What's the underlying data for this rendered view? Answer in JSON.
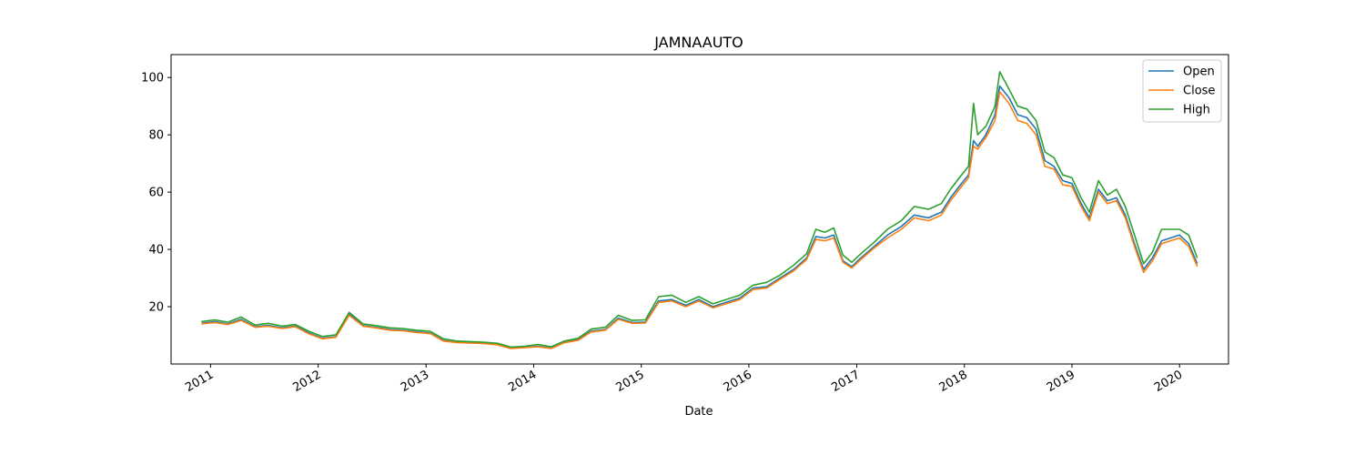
{
  "chart_data": {
    "type": "line",
    "title": "JAMNAAUTO",
    "xlabel": "Date",
    "ylabel": "",
    "xlim": [
      "2010-08-20",
      "2020-06-15"
    ],
    "ylim": [
      0,
      108
    ],
    "x_ticks": [
      "2011",
      "2012",
      "2013",
      "2014",
      "2015",
      "2016",
      "2017",
      "2018",
      "2019",
      "2020"
    ],
    "y_ticks": [
      20,
      40,
      60,
      80,
      100
    ],
    "grid": false,
    "legend_position": "top-right",
    "colors": {
      "Open": "#1f77b4",
      "Close": "#ff7f0e",
      "High": "#2ca02c"
    },
    "dates": [
      "2010-12-01",
      "2011-01-15",
      "2011-03-01",
      "2011-04-15",
      "2011-06-01",
      "2011-07-15",
      "2011-09-01",
      "2011-10-15",
      "2011-12-01",
      "2012-01-15",
      "2012-03-01",
      "2012-04-15",
      "2012-06-01",
      "2012-07-15",
      "2012-09-01",
      "2012-10-15",
      "2012-12-01",
      "2013-01-15",
      "2013-03-01",
      "2013-04-15",
      "2013-06-01",
      "2013-07-15",
      "2013-09-01",
      "2013-10-15",
      "2013-12-01",
      "2014-01-15",
      "2014-03-01",
      "2014-04-15",
      "2014-06-01",
      "2014-07-15",
      "2014-09-01",
      "2014-10-15",
      "2014-12-01",
      "2015-01-15",
      "2015-03-01",
      "2015-04-15",
      "2015-06-01",
      "2015-07-15",
      "2015-09-01",
      "2015-10-15",
      "2015-12-01",
      "2016-01-15",
      "2016-03-01",
      "2016-04-15",
      "2016-06-01",
      "2016-07-15",
      "2016-08-15",
      "2016-09-15",
      "2016-10-15",
      "2016-11-15",
      "2016-12-15",
      "2017-01-15",
      "2017-03-01",
      "2017-04-15",
      "2017-06-01",
      "2017-07-15",
      "2017-09-01",
      "2017-10-15",
      "2017-11-15",
      "2017-12-15",
      "2018-01-15",
      "2018-02-01",
      "2018-02-15",
      "2018-03-15",
      "2018-04-15",
      "2018-05-01",
      "2018-06-01",
      "2018-07-01",
      "2018-08-01",
      "2018-09-01",
      "2018-10-01",
      "2018-11-01",
      "2018-12-01",
      "2019-01-01",
      "2019-02-01",
      "2019-03-01",
      "2019-04-01",
      "2019-05-01",
      "2019-06-01",
      "2019-07-01",
      "2019-08-01",
      "2019-09-01",
      "2019-10-01",
      "2019-11-01",
      "2019-12-01",
      "2020-01-01",
      "2020-02-01",
      "2020-03-01"
    ],
    "series": [
      {
        "name": "Open",
        "values": [
          14.2,
          14.8,
          14.0,
          15.6,
          13.0,
          13.5,
          12.6,
          13.2,
          10.8,
          9.0,
          9.5,
          17.5,
          13.4,
          12.8,
          12.0,
          11.8,
          11.2,
          10.8,
          8.2,
          7.6,
          7.4,
          7.2,
          6.8,
          5.5,
          5.8,
          6.2,
          5.5,
          7.5,
          8.5,
          11.5,
          12.0,
          16.0,
          14.5,
          14.6,
          22.0,
          22.5,
          20.5,
          22.5,
          20.0,
          21.5,
          23.0,
          26.5,
          27.0,
          30.0,
          33.0,
          37.0,
          44.5,
          44.0,
          45.0,
          36.0,
          34.0,
          37.0,
          41.0,
          45.0,
          48.0,
          52.0,
          51.0,
          53.0,
          58.0,
          62.0,
          66.0,
          78.0,
          76.0,
          80.0,
          87.0,
          97.0,
          93.0,
          87.0,
          86.0,
          82.0,
          71.0,
          69.0,
          64.0,
          63.0,
          56.0,
          51.0,
          61.0,
          57.0,
          58.0,
          52.0,
          42.0,
          33.0,
          37.0,
          43.0,
          44.0,
          45.0,
          42.0,
          35.0
        ]
      },
      {
        "name": "Close",
        "values": [
          14.0,
          14.5,
          13.8,
          15.2,
          12.8,
          13.2,
          12.4,
          13.0,
          10.5,
          8.8,
          9.3,
          17.0,
          13.2,
          12.6,
          11.8,
          11.6,
          11.0,
          10.6,
          8.0,
          7.5,
          7.3,
          7.1,
          6.7,
          5.4,
          5.7,
          6.0,
          5.4,
          7.4,
          8.3,
          11.2,
          11.8,
          15.6,
          14.2,
          14.3,
          21.5,
          22.0,
          20.0,
          22.0,
          19.6,
          21.0,
          22.5,
          26.0,
          26.5,
          29.5,
          32.5,
          36.5,
          43.5,
          43.0,
          44.0,
          35.5,
          33.5,
          36.5,
          40.5,
          44.0,
          47.0,
          51.0,
          50.0,
          52.0,
          57.0,
          61.0,
          65.0,
          76.0,
          75.0,
          79.0,
          85.0,
          95.0,
          91.0,
          85.0,
          84.0,
          80.0,
          69.0,
          68.0,
          62.5,
          62.0,
          55.0,
          50.0,
          60.0,
          56.0,
          57.0,
          51.0,
          41.0,
          32.0,
          36.0,
          42.0,
          43.0,
          44.0,
          41.0,
          34.0
        ]
      },
      {
        "name": "High",
        "values": [
          14.8,
          15.4,
          14.6,
          16.4,
          13.6,
          14.2,
          13.2,
          13.8,
          11.4,
          9.6,
          10.2,
          18.0,
          14.0,
          13.4,
          12.6,
          12.4,
          11.8,
          11.4,
          8.8,
          8.0,
          7.8,
          7.6,
          7.2,
          5.9,
          6.2,
          6.8,
          6.0,
          8.0,
          9.0,
          12.2,
          12.8,
          17.0,
          15.2,
          15.4,
          23.5,
          24.0,
          21.5,
          23.5,
          21.0,
          22.5,
          24.0,
          27.5,
          28.5,
          31.0,
          34.5,
          38.5,
          47.0,
          46.0,
          47.5,
          38.0,
          35.5,
          38.5,
          42.5,
          47.0,
          50.0,
          55.0,
          54.0,
          56.0,
          61.0,
          65.0,
          69.0,
          91.0,
          80.0,
          83.0,
          90.0,
          102.0,
          96.0,
          90.0,
          89.0,
          85.0,
          74.0,
          72.0,
          66.0,
          65.0,
          58.0,
          53.0,
          64.0,
          59.0,
          61.0,
          55.0,
          45.0,
          35.0,
          39.0,
          47.0,
          47.0,
          47.0,
          45.0,
          37.0
        ]
      }
    ]
  }
}
